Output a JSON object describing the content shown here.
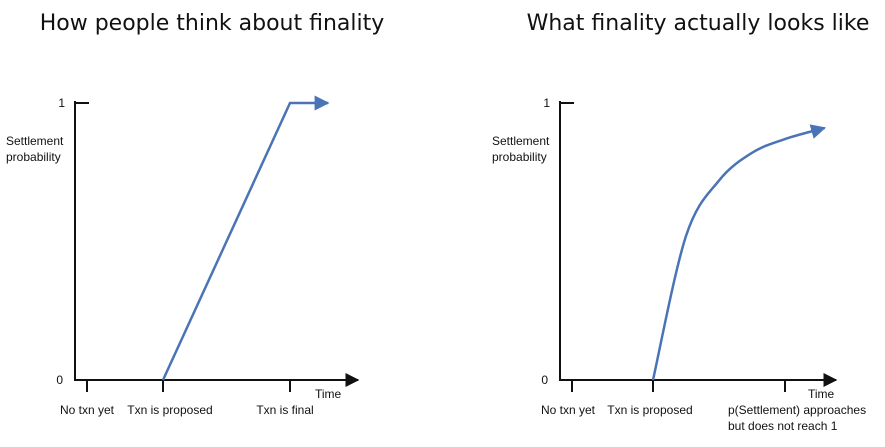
{
  "chart_data": [
    {
      "type": "line",
      "title": "How people think about finality",
      "ylabel": [
        "Settlement",
        "probability"
      ],
      "xlabel": "Time",
      "ylim": [
        0,
        1
      ],
      "y_ticks": [
        "0",
        "1"
      ],
      "x_tick_labels": [
        {
          "lines": [
            "No txn yet"
          ]
        },
        {
          "lines": [
            "Txn is proposed"
          ]
        },
        {
          "lines": [
            "Txn is final"
          ]
        }
      ],
      "series": [
        {
          "shape": "linear ramp to 1 then flat",
          "x": [
            1,
            2,
            2.3
          ],
          "y": [
            0,
            1,
            1
          ]
        }
      ],
      "color": "#4a74b5"
    },
    {
      "type": "line",
      "title": "What finality actually looks like",
      "ylabel": [
        "Settlement",
        "probability"
      ],
      "xlabel": "Time",
      "ylim": [
        0,
        1
      ],
      "y_ticks": [
        "0",
        "1"
      ],
      "x_tick_labels": [
        {
          "lines": [
            "No txn yet"
          ]
        },
        {
          "lines": [
            "Txn is proposed"
          ]
        },
        {
          "lines": [
            "p(Settlement) approaches",
            "but does not reach 1"
          ]
        }
      ],
      "series": [
        {
          "shape": "asymptotic curve approaching 1",
          "x": [
            1,
            1.25,
            1.5,
            1.75,
            2,
            2.3
          ],
          "y": [
            0,
            0.52,
            0.72,
            0.82,
            0.87,
            0.91
          ]
        }
      ],
      "color": "#4a74b5"
    }
  ]
}
